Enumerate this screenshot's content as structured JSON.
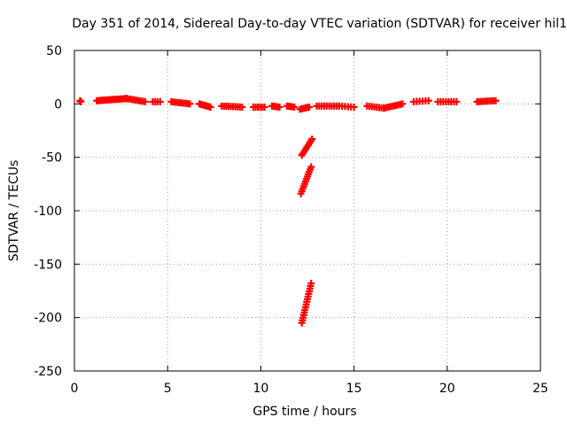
{
  "chart_data": {
    "type": "scatter",
    "title": "Day 351 of 2014, Sidereal Day-to-day VTEC variation (SDTVAR) for receiver hil1",
    "xlabel": "GPS time / hours",
    "ylabel": "SDTVAR / TECUs",
    "xlim": [
      0,
      25
    ],
    "ylim": [
      -250,
      50
    ],
    "xticks": [
      0,
      5,
      10,
      15,
      20,
      25
    ],
    "yticks": [
      -250,
      -200,
      -150,
      -100,
      -50,
      0,
      50
    ],
    "grid": true,
    "marker": "+",
    "color": "#ff0000",
    "segments": [
      {
        "from": [
          0.3,
          3
        ],
        "to": [
          0.35,
          2
        ],
        "n": 3
      },
      {
        "from": [
          1.2,
          3
        ],
        "to": [
          2.0,
          4
        ],
        "n": 10
      },
      {
        "from": [
          2.0,
          4
        ],
        "to": [
          2.8,
          5
        ],
        "n": 10
      },
      {
        "from": [
          2.8,
          5
        ],
        "to": [
          3.8,
          2
        ],
        "n": 10
      },
      {
        "from": [
          4.2,
          2
        ],
        "to": [
          4.6,
          2
        ],
        "n": 4
      },
      {
        "from": [
          5.2,
          2
        ],
        "to": [
          6.2,
          0
        ],
        "n": 10
      },
      {
        "from": [
          6.7,
          0
        ],
        "to": [
          7.3,
          -3
        ],
        "n": 8
      },
      {
        "from": [
          7.9,
          -2
        ],
        "to": [
          9.0,
          -3
        ],
        "n": 10
      },
      {
        "from": [
          9.6,
          -3
        ],
        "to": [
          10.2,
          -3
        ],
        "n": 6
      },
      {
        "from": [
          10.6,
          -2
        ],
        "to": [
          11.0,
          -3
        ],
        "n": 5
      },
      {
        "from": [
          11.4,
          -2
        ],
        "to": [
          11.8,
          -3
        ],
        "n": 5
      },
      {
        "from": [
          12.1,
          -5
        ],
        "to": [
          12.6,
          -3
        ],
        "n": 6
      },
      {
        "from": [
          12.2,
          -48
        ],
        "to": [
          12.75,
          -33
        ],
        "n": 9
      },
      {
        "from": [
          12.15,
          -84
        ],
        "to": [
          12.7,
          -59
        ],
        "n": 12
      },
      {
        "from": [
          12.2,
          -205
        ],
        "to": [
          12.7,
          -168
        ],
        "n": 16
      },
      {
        "from": [
          13.0,
          -2
        ],
        "to": [
          14.2,
          -2
        ],
        "n": 10
      },
      {
        "from": [
          14.2,
          -2
        ],
        "to": [
          15.0,
          -3
        ],
        "n": 6
      },
      {
        "from": [
          15.7,
          -2
        ],
        "to": [
          16.6,
          -4
        ],
        "n": 8
      },
      {
        "from": [
          16.6,
          -4
        ],
        "to": [
          17.6,
          0
        ],
        "n": 10
      },
      {
        "from": [
          18.2,
          2
        ],
        "to": [
          19.0,
          3
        ],
        "n": 6
      },
      {
        "from": [
          19.5,
          2
        ],
        "to": [
          20.5,
          2
        ],
        "n": 8
      },
      {
        "from": [
          21.6,
          2
        ],
        "to": [
          22.6,
          3
        ],
        "n": 10
      }
    ]
  }
}
